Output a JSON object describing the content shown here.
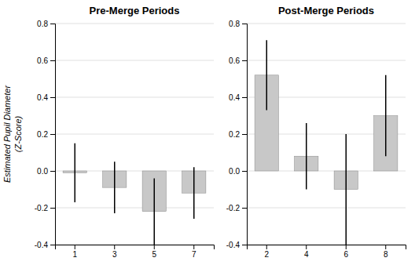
{
  "chart_data": [
    {
      "type": "bar",
      "title": "Pre-Merge Periods",
      "ylabel": "Estimated Pupil Diameter\n(Z-Score)",
      "categories": [
        "1",
        "3",
        "5",
        "7"
      ],
      "values": [
        -0.01,
        -0.09,
        -0.22,
        -0.12
      ],
      "errors": [
        0.16,
        0.14,
        0.18,
        0.14
      ],
      "color": "#c8c8c8",
      "ylim": [
        -0.4,
        0.8
      ],
      "yticks": [
        -0.4,
        -0.2,
        {
          "value": 0,
          "label": "0.0"
        },
        0.2,
        0.4,
        0.6,
        0.8
      ],
      "grid": true
    },
    {
      "type": "bar",
      "title": "Post-Merge Periods",
      "categories": [
        "2",
        "4",
        "6",
        "8"
      ],
      "values": [
        0.52,
        0.08,
        -0.1,
        0.3
      ],
      "errors": [
        0.19,
        0.18,
        0.3,
        0.22
      ],
      "color": "#c8c8c8",
      "ylim": [
        -0.4,
        0.8
      ],
      "yticks": [
        -0.4,
        -0.2,
        {
          "value": 0,
          "label": "0.0"
        },
        0.2,
        0.4,
        0.6,
        0.8
      ],
      "grid": true
    }
  ]
}
